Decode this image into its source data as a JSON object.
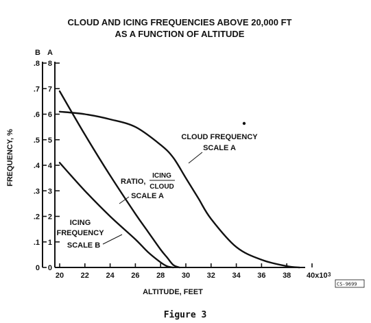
{
  "chart_data": {
    "type": "line",
    "title_line1": "CLOUD AND ICING FREQUENCIES ABOVE 20,000 FT",
    "title_line2": "AS A FUNCTION OF ALTITUDE",
    "xlabel": "ALTITUDE, FEET",
    "ylabel": "FREQUENCY, %",
    "x_ticks": [
      "20",
      "22",
      "24",
      "26",
      "28",
      "30",
      "32",
      "34",
      "36",
      "38",
      "40x10"
    ],
    "x_exponent": "3",
    "xlim": [
      20,
      40
    ],
    "scale_b_header": "B",
    "scale_a_header": "A",
    "scale_b_ticks": [
      "0",
      ".1",
      ".2",
      ".3",
      ".4",
      ".5",
      ".6",
      ".7",
      ".8"
    ],
    "scale_a_ticks": [
      "0",
      "1",
      "2",
      "3",
      "4",
      "5",
      "6",
      "7",
      "8"
    ],
    "ylim": [
      0,
      8
    ],
    "stamp": "CS-9699",
    "caption": "Figure 3",
    "series": [
      {
        "name": "cloud-frequency",
        "label_lines": [
          "CLOUD FREQUENCY",
          "SCALE A"
        ],
        "x": [
          20,
          22,
          24,
          26,
          28,
          29,
          30,
          31,
          32,
          34,
          36,
          38,
          39
        ],
        "y": [
          6.1,
          6.0,
          5.8,
          5.5,
          4.8,
          4.3,
          3.5,
          2.7,
          1.9,
          0.8,
          0.3,
          0.05,
          0.0
        ]
      },
      {
        "name": "ratio",
        "label_prefix": "RATIO,",
        "label_numerator": "ICING",
        "label_denominator": "CLOUD",
        "label_scale": "SCALE A",
        "x": [
          20,
          22,
          24,
          26,
          27,
          28,
          28.5,
          29,
          29.5
        ],
        "y": [
          6.9,
          5.2,
          3.6,
          2.1,
          1.4,
          0.7,
          0.4,
          0.1,
          0.0
        ]
      },
      {
        "name": "icing-frequency",
        "label_lines": [
          "ICING",
          "FREQUENCY",
          "SCALE B"
        ],
        "x": [
          20,
          22,
          24,
          26,
          27,
          28,
          28.5,
          29
        ],
        "y": [
          4.1,
          3.0,
          2.0,
          1.1,
          0.6,
          0.2,
          0.05,
          0.0
        ]
      }
    ]
  }
}
